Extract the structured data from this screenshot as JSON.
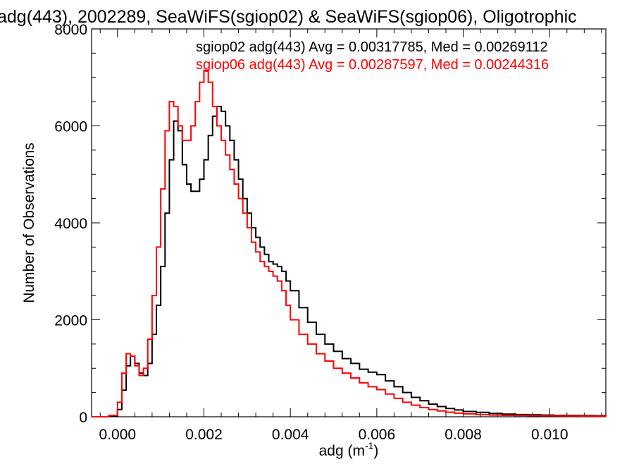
{
  "chart_data": {
    "type": "line",
    "step": true,
    "title": "adg(443), 2002289, SeaWiFS(sgiop02) & SeaWiFS(sgiop06), Oligotrophic",
    "xlabel": "adg (m",
    "xlabel_sup": "-1",
    "xlabel_suffix": ")",
    "ylabel": "Number of Observations",
    "xlim": [
      -0.0006,
      0.0113
    ],
    "ylim": [
      0,
      8000
    ],
    "x_ticks": [
      0.0,
      0.002,
      0.004,
      0.006,
      0.008,
      0.01
    ],
    "x_tick_labels": [
      "0.000",
      "0.002",
      "0.004",
      "0.006",
      "0.008",
      "0.010"
    ],
    "y_ticks": [
      0,
      2000,
      4000,
      6000,
      8000
    ],
    "y_tick_labels": [
      "0",
      "2000",
      "4000",
      "6000",
      "8000"
    ],
    "grid": false,
    "legend_position": "top-right",
    "annotations": [
      {
        "text": "sgiop02 adg(443) Avg = 0.00317785, Med = 0.00269112",
        "color": "#000000"
      },
      {
        "text": "sgiop06 adg(443) Avg = 0.00287597, Med = 0.00244316",
        "color": "#ff0000"
      }
    ],
    "series": [
      {
        "color": "#000000",
        "x": [
          -0.0006,
          -0.0002,
          0.0,
          0.0001,
          0.0002,
          0.0003,
          0.0004,
          0.0005,
          0.0006,
          0.0007,
          0.0008,
          0.0009,
          0.001,
          0.0011,
          0.0012,
          0.0013,
          0.0014,
          0.0015,
          0.0016,
          0.0017,
          0.0018,
          0.0019,
          0.002,
          0.0021,
          0.0022,
          0.0023,
          0.0024,
          0.0025,
          0.0026,
          0.0027,
          0.0028,
          0.0029,
          0.003,
          0.0031,
          0.0032,
          0.0033,
          0.0034,
          0.0035,
          0.0036,
          0.0037,
          0.0038,
          0.0039,
          0.004,
          0.0042,
          0.0044,
          0.0046,
          0.0048,
          0.005,
          0.0052,
          0.0054,
          0.0056,
          0.0058,
          0.006,
          0.0062,
          0.0064,
          0.0066,
          0.0068,
          0.007,
          0.0072,
          0.0074,
          0.0076,
          0.0078,
          0.008,
          0.0083,
          0.0086,
          0.0089,
          0.0092,
          0.0095,
          0.0098,
          0.0101,
          0.0104,
          0.0107,
          0.011,
          0.0113
        ],
        "values": [
          0,
          20,
          150,
          550,
          1050,
          1250,
          1100,
          900,
          850,
          1100,
          1700,
          2300,
          3100,
          4200,
          5300,
          6100,
          5900,
          5200,
          4800,
          4650,
          4650,
          4900,
          5300,
          5800,
          6200,
          6400,
          6300,
          6000,
          5700,
          5300,
          4900,
          4500,
          4200,
          3900,
          3700,
          3500,
          3350,
          3200,
          3150,
          3100,
          3000,
          2800,
          2600,
          2250,
          1950,
          1700,
          1500,
          1350,
          1200,
          1100,
          980,
          920,
          870,
          740,
          620,
          500,
          400,
          330,
          260,
          210,
          170,
          140,
          110,
          90,
          70,
          55,
          45,
          40,
          35,
          30,
          28,
          25,
          22,
          20
        ]
      },
      {
        "color": "#ff0000",
        "x": [
          -0.0006,
          -0.0002,
          0.0,
          0.0001,
          0.0002,
          0.0003,
          0.0004,
          0.0005,
          0.0006,
          0.0007,
          0.0008,
          0.0009,
          0.001,
          0.0011,
          0.0012,
          0.0013,
          0.0014,
          0.0015,
          0.0016,
          0.0017,
          0.0018,
          0.0019,
          0.002,
          0.0021,
          0.0022,
          0.0023,
          0.0024,
          0.0025,
          0.0026,
          0.0027,
          0.0028,
          0.0029,
          0.003,
          0.0031,
          0.0032,
          0.0033,
          0.0034,
          0.0035,
          0.0036,
          0.0037,
          0.0038,
          0.0039,
          0.004,
          0.0042,
          0.0044,
          0.0046,
          0.0048,
          0.005,
          0.0052,
          0.0054,
          0.0056,
          0.0058,
          0.006,
          0.0062,
          0.0064,
          0.0066,
          0.0068,
          0.007,
          0.0072,
          0.0074,
          0.0076,
          0.0078,
          0.008,
          0.0083,
          0.0086,
          0.0089,
          0.0092,
          0.0095,
          0.0098,
          0.0101,
          0.0104,
          0.0107,
          0.011,
          0.0113
        ],
        "values": [
          0,
          30,
          300,
          900,
          1300,
          1250,
          1050,
          850,
          1000,
          1600,
          2500,
          3500,
          4700,
          5900,
          6500,
          6400,
          6000,
          5700,
          5700,
          6000,
          6500,
          6900,
          7150,
          6900,
          6400,
          6000,
          5700,
          5400,
          5100,
          4800,
          4500,
          4200,
          3900,
          3600,
          3400,
          3200,
          3100,
          3000,
          2900,
          2800,
          2600,
          2300,
          2000,
          1700,
          1500,
          1300,
          1150,
          1000,
          900,
          800,
          700,
          620,
          560,
          470,
          380,
          300,
          240,
          190,
          150,
          120,
          95,
          75,
          60,
          45,
          35,
          30,
          25,
          22,
          20,
          18,
          16,
          14,
          12,
          10
        ]
      }
    ]
  }
}
